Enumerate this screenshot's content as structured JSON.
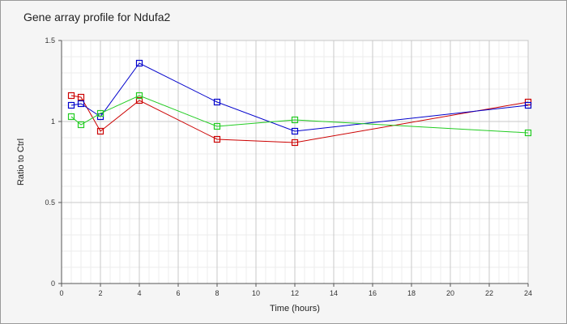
{
  "chart_data": {
    "type": "line",
    "title": "Gene array profile for Ndufa2",
    "xlabel": "Time (hours)",
    "ylabel": "Ratio to Ctrl",
    "xlim": [
      0,
      24
    ],
    "ylim": [
      0,
      1.5
    ],
    "x_ticks": [
      "0",
      "2",
      "4",
      "6",
      "8",
      "10",
      "12",
      "14",
      "16",
      "18",
      "20",
      "22",
      "24"
    ],
    "y_ticks": [
      "0",
      "0.5",
      "1",
      "1.5"
    ],
    "grid": true,
    "legend": "none",
    "marker": "square",
    "series": [
      {
        "color": "#cc0000",
        "points": [
          [
            0.5,
            1.16
          ],
          [
            1,
            1.15
          ],
          [
            2,
            0.94
          ],
          [
            4,
            1.13
          ],
          [
            8,
            0.89
          ],
          [
            12,
            0.87
          ],
          [
            24,
            1.12
          ]
        ]
      },
      {
        "color": "#0000cc",
        "points": [
          [
            0.5,
            1.1
          ],
          [
            1,
            1.11
          ],
          [
            2,
            1.03
          ],
          [
            4,
            1.36
          ],
          [
            8,
            1.12
          ],
          [
            12,
            0.94
          ],
          [
            24,
            1.1
          ]
        ]
      },
      {
        "color": "#22cc22",
        "points": [
          [
            0.5,
            1.03
          ],
          [
            1,
            0.98
          ],
          [
            2,
            1.05
          ],
          [
            4,
            1.16
          ],
          [
            8,
            0.97
          ],
          [
            12,
            1.01
          ],
          [
            24,
            0.93
          ]
        ]
      }
    ]
  }
}
